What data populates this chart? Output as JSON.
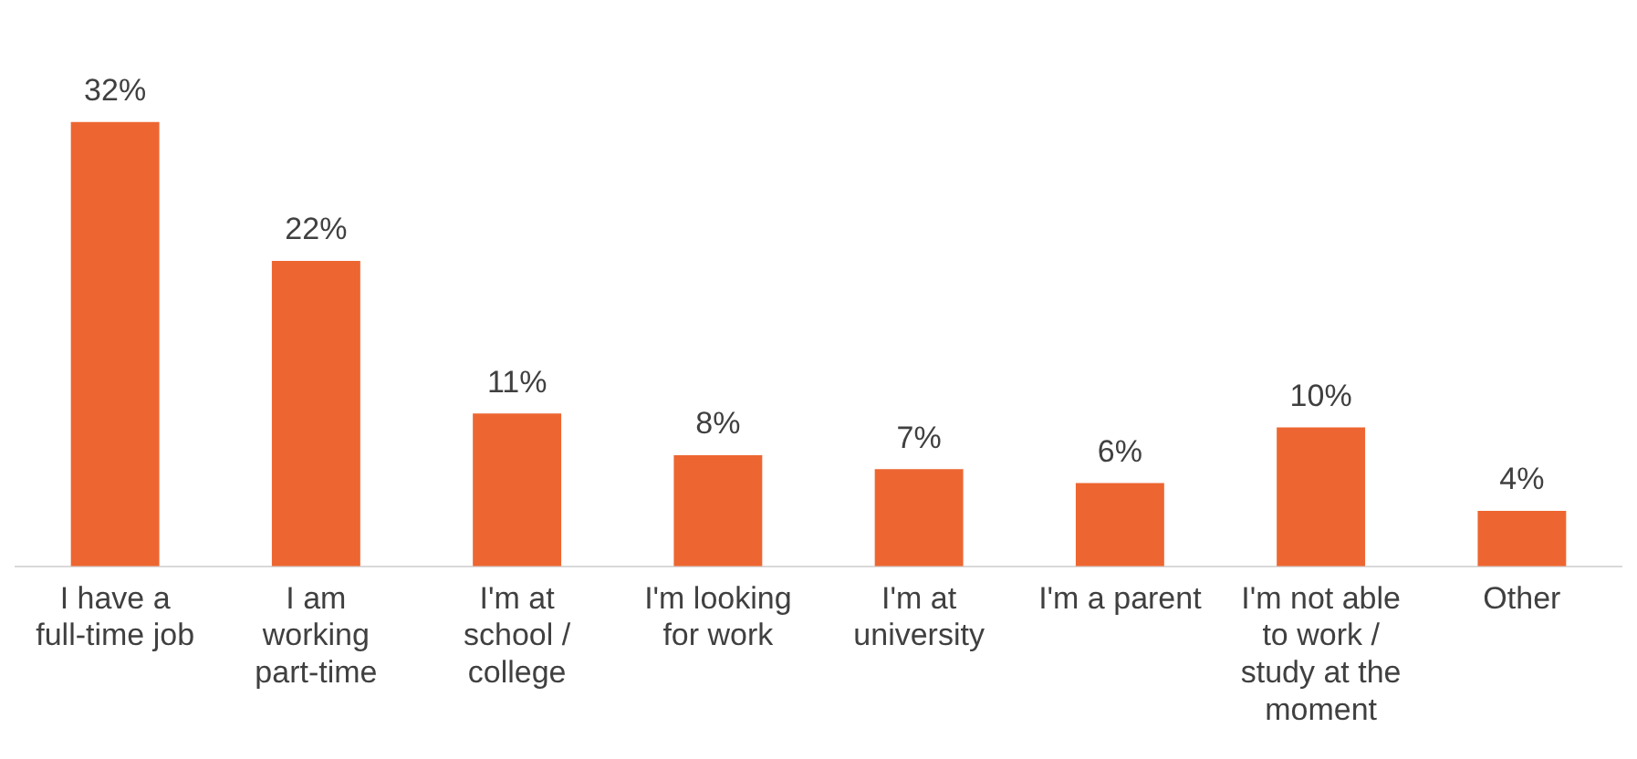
{
  "chart_data": {
    "type": "bar",
    "categories": [
      "I have a full-time job",
      "I am working part-time",
      "I'm at school / college",
      "I'm looking for work",
      "I'm at university",
      "I'm a parent",
      "I'm not able to work / study at the moment",
      "Other"
    ],
    "values": [
      32,
      22,
      11,
      8,
      7,
      6,
      10,
      4
    ],
    "value_labels": [
      "32%",
      "22%",
      "11%",
      "8%",
      "7%",
      "6%",
      "10%",
      "4%"
    ],
    "color": "#ed6631"
  }
}
